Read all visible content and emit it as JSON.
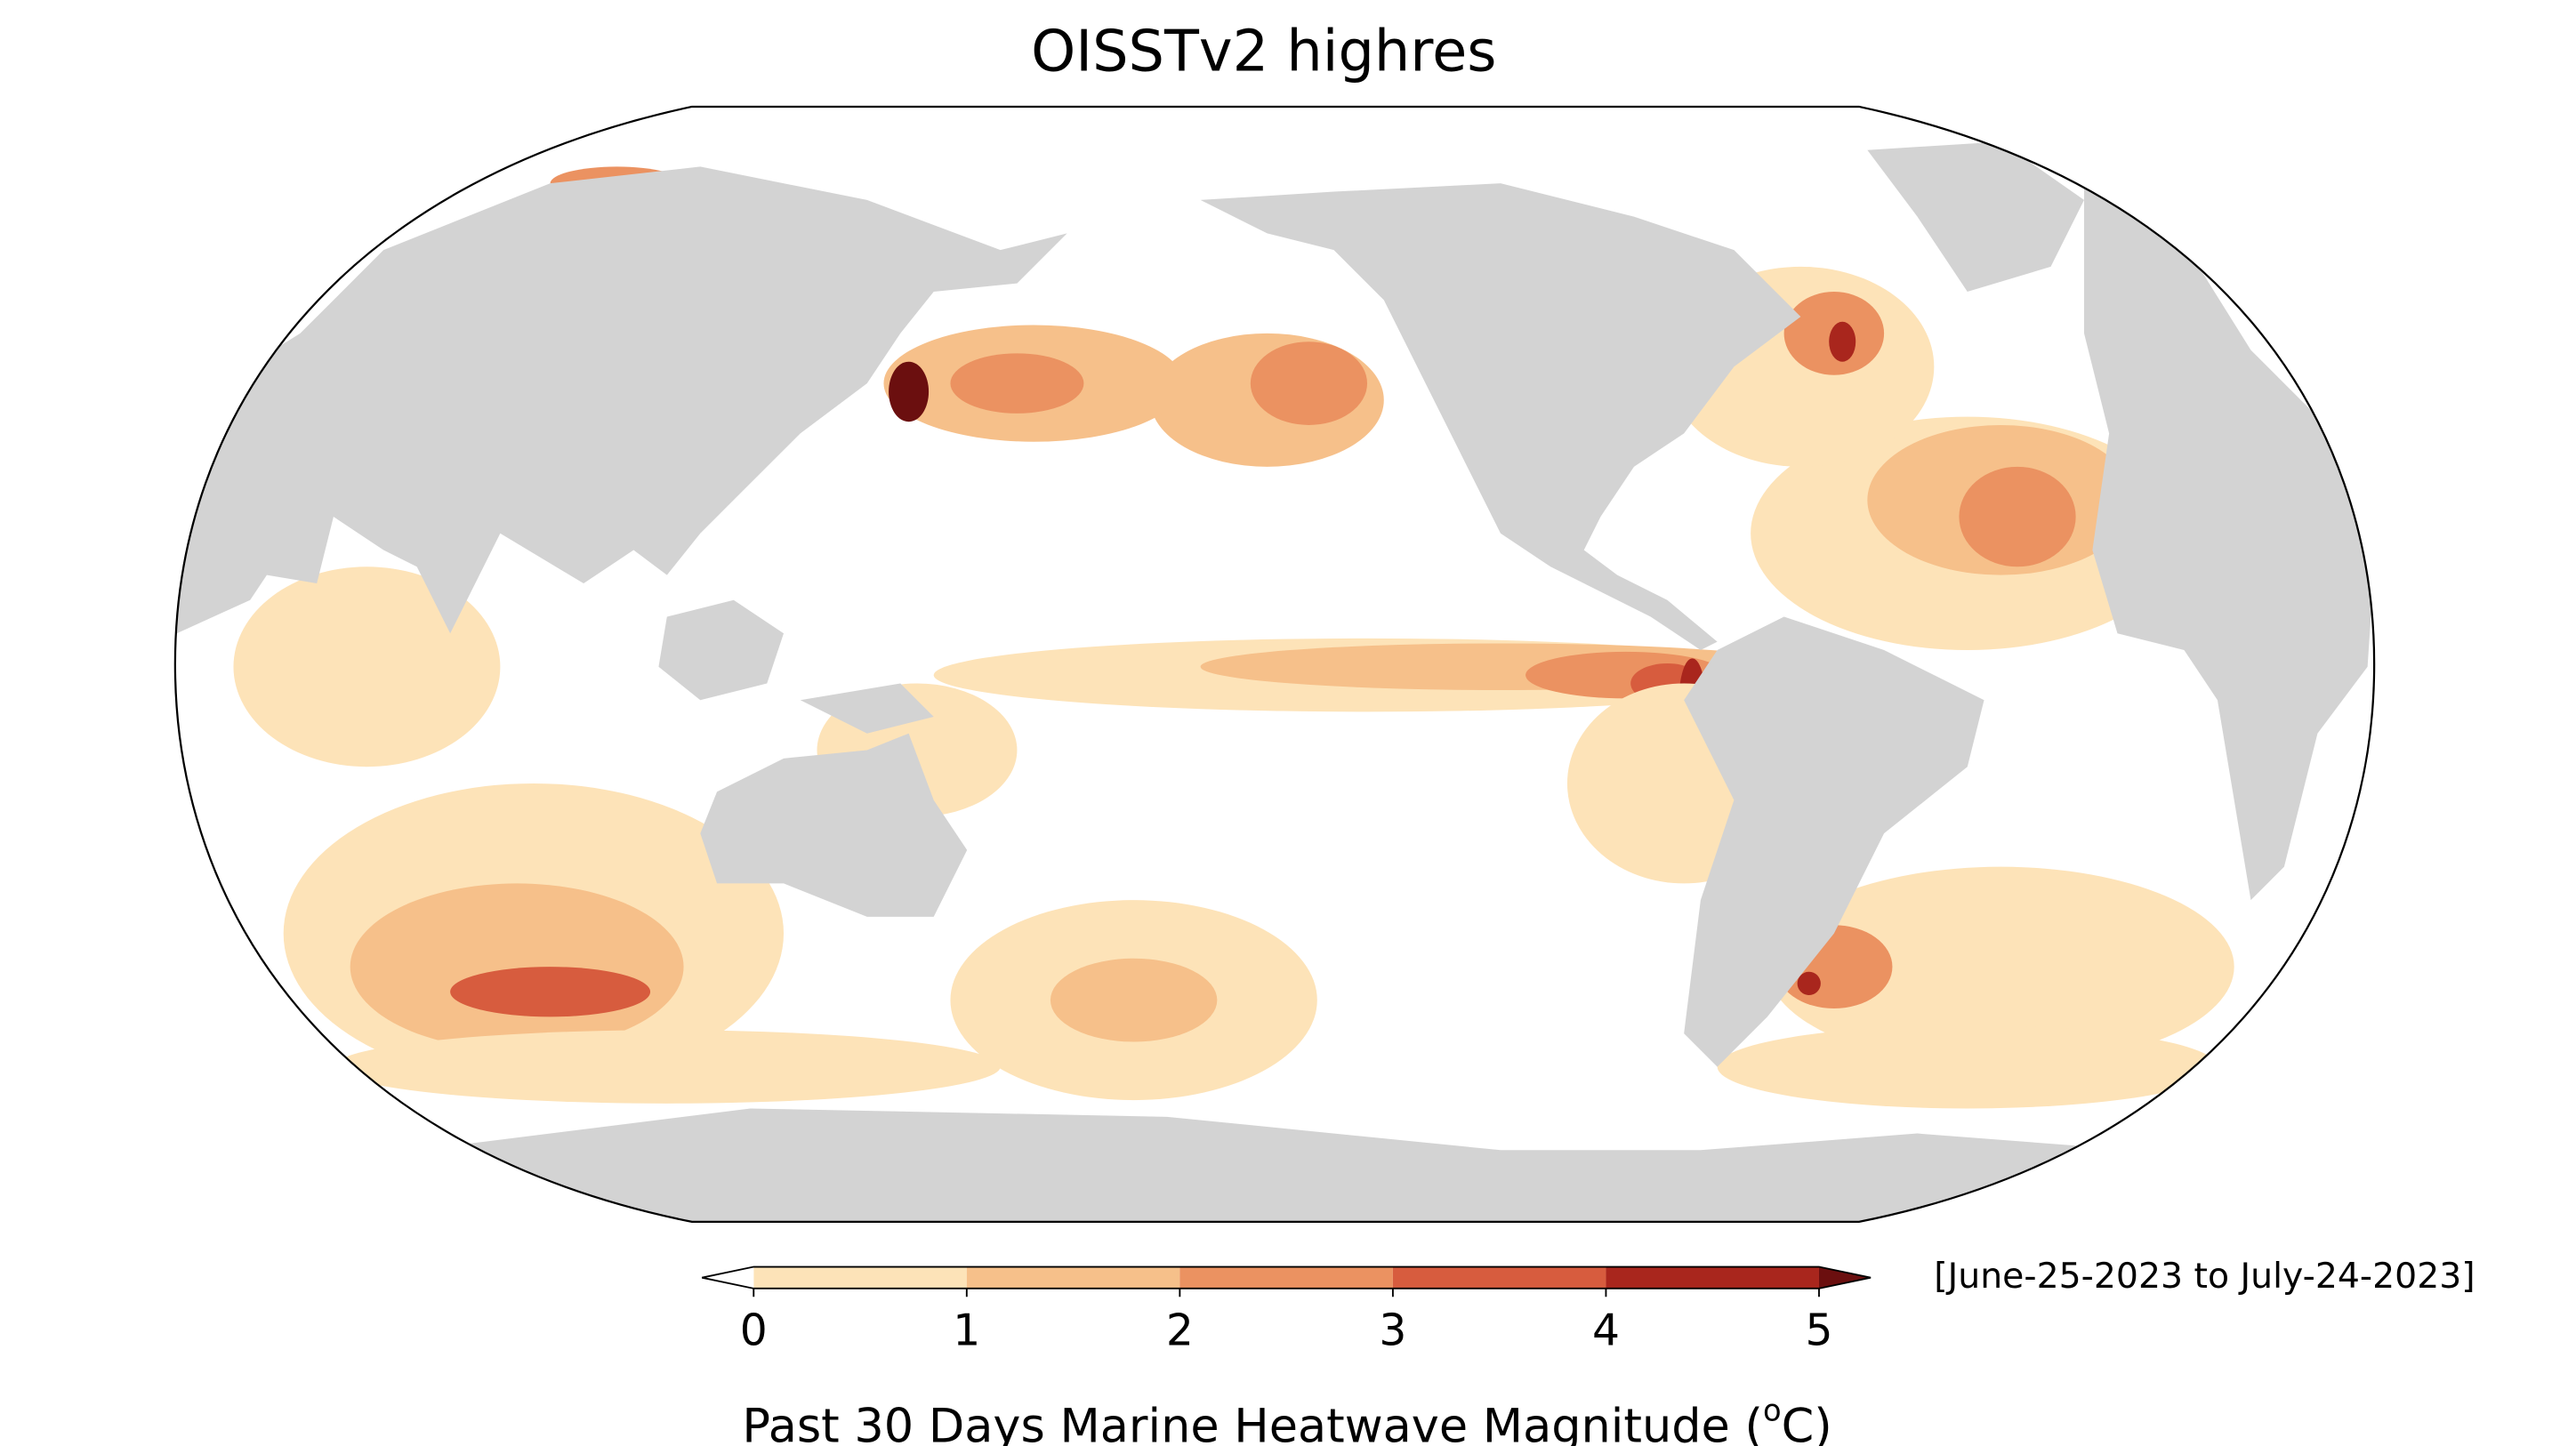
{
  "chart_data": {
    "type": "map",
    "title": "OISSTv2 highres",
    "date_range": "[June-25-2023 to July-24-2023]",
    "colorbar": {
      "label": {
        "text": "Past 30 Days Marine Heatwave Magnitude (",
        "superscript": "o",
        "unit": "C)"
      },
      "lim": [
        0,
        5
      ],
      "ticks": [
        0,
        1,
        2,
        3,
        4,
        5
      ],
      "colors": [
        "#fde3b8",
        "#f6c08a",
        "#eb9261",
        "#d75c3e",
        "#a9261d"
      ],
      "under_color": "#ffffff",
      "over_color": "#6b0f0f"
    }
  }
}
